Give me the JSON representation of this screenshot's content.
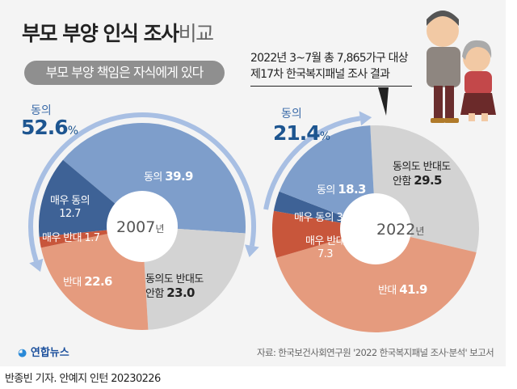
{
  "header": {
    "title_bold": "부모 부양 인식 조사",
    "title_light": "비교",
    "subtitle": "부모 부양 책임은 자식에게 있다"
  },
  "note": {
    "line1": "2022년 3~7월 총 7,865가구 대상",
    "line2": "제17차 한국복지패널 조사 결과"
  },
  "colors": {
    "agree": "#7e9ecb",
    "strongly_agree": "#3e6296",
    "neutral": "#d3d3d3",
    "disagree": "#e59b7e",
    "strongly_disagree": "#c8563b",
    "arrow": "#a8bfe3"
  },
  "chart_data": [
    {
      "type": "pie",
      "donut": true,
      "year_label": "2007",
      "year_unit": "년",
      "agree_label": "동의",
      "agree_total": "52.6",
      "agree_unit": "%",
      "slices": [
        {
          "label": "동의",
          "value": 39.9,
          "color": "#7e9ecb"
        },
        {
          "label": "동의도 반대도 안함",
          "value": 23.0,
          "color": "#d3d3d3"
        },
        {
          "label": "반대",
          "value": 22.6,
          "color": "#e59b7e"
        },
        {
          "label": "매우 반대",
          "value": 1.7,
          "color": "#c8563b"
        },
        {
          "label": "매우 동의",
          "value": 12.7,
          "color": "#3e6296"
        }
      ]
    },
    {
      "type": "pie",
      "donut": true,
      "year_label": "2022",
      "year_unit": "년",
      "agree_label": "동의",
      "agree_total": "21.4",
      "agree_unit": "%",
      "slices": [
        {
          "label": "동의도 반대도 안함",
          "value": 29.5,
          "color": "#d3d3d3"
        },
        {
          "label": "반대",
          "value": 41.9,
          "color": "#e59b7e"
        },
        {
          "label": "매우 반대",
          "value": 7.3,
          "color": "#c8563b"
        },
        {
          "label": "매우 동의",
          "value": 3.1,
          "color": "#3e6296"
        },
        {
          "label": "동의",
          "value": 18.3,
          "color": "#7e9ecb"
        }
      ]
    }
  ],
  "labels": {
    "neutral_l1": "동의도 반대도",
    "neutral_l2": "안함"
  },
  "footer": {
    "logo": "연합뉴스",
    "source": "자료: 한국보건사회연구원 '2022 한국복지패널 조사·분석' 보고서",
    "byline": "반종빈 기자. 안예지 인턴  20230226"
  }
}
